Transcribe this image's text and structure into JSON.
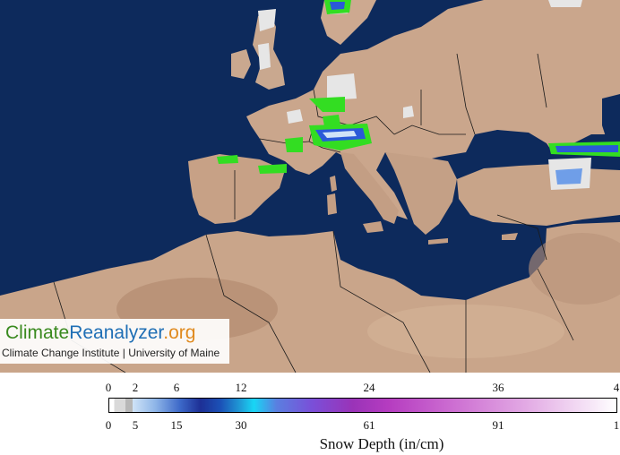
{
  "logo": {
    "part1": "Climate",
    "part2": "Reanalyzer",
    "part3": ".org",
    "subtitle": "Climate Change Institute | University of Maine"
  },
  "legend": {
    "title": "Snow Depth (in/cm)",
    "inch_ticks": [
      "0",
      "2",
      "6",
      "12",
      "24",
      "36",
      "4"
    ],
    "cm_ticks": [
      "0",
      "5",
      "15",
      "30",
      "61",
      "91",
      "1"
    ]
  },
  "colors": {
    "ocean": "#0d2a5c",
    "land": "#c9a78c",
    "snow_light": "#e6e6e6",
    "snow_green": "#33dd22",
    "snow_blue": "#2a5ad8"
  }
}
